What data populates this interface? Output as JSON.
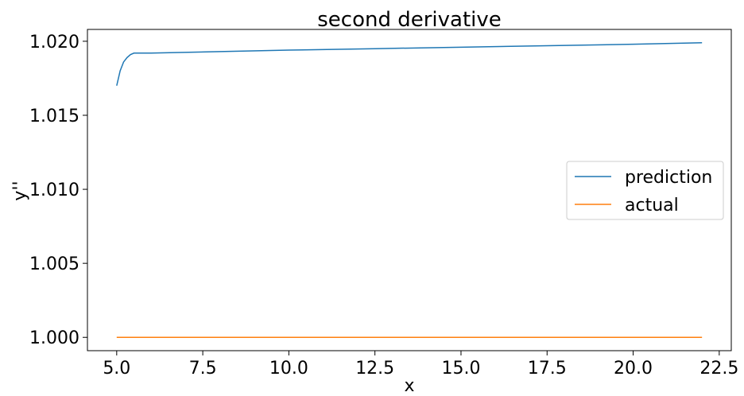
{
  "chart_data": {
    "type": "line",
    "title": "second derivative",
    "xlabel": "x",
    "ylabel": "y''",
    "xlim": [
      4.15,
      22.85
    ],
    "ylim": [
      0.9991,
      1.0208
    ],
    "xticks": [
      5.0,
      7.5,
      10.0,
      12.5,
      15.0,
      17.5,
      20.0,
      22.5
    ],
    "xtick_labels": [
      "5.0",
      "7.5",
      "10.0",
      "12.5",
      "15.0",
      "17.5",
      "20.0",
      "22.5"
    ],
    "yticks": [
      1.0,
      1.005,
      1.01,
      1.015,
      1.02
    ],
    "ytick_labels": [
      "1.000",
      "1.005",
      "1.010",
      "1.015",
      "1.020"
    ],
    "grid": false,
    "legend_position": "center-right",
    "series": [
      {
        "name": "prediction",
        "color": "#1f77b4",
        "x": [
          5.0,
          5.1,
          5.2,
          5.3,
          5.4,
          5.5,
          5.6,
          6.0,
          8.0,
          10.0,
          12.5,
          15.0,
          17.5,
          20.0,
          22.0
        ],
        "y": [
          1.017,
          1.018,
          1.0186,
          1.0189,
          1.0191,
          1.0192,
          1.0192,
          1.0192,
          1.0193,
          1.0194,
          1.0195,
          1.0196,
          1.0197,
          1.0198,
          1.0199
        ]
      },
      {
        "name": "actual",
        "color": "#ff7f0e",
        "x": [
          5.0,
          22.0
        ],
        "y": [
          1.0,
          1.0
        ]
      }
    ]
  }
}
